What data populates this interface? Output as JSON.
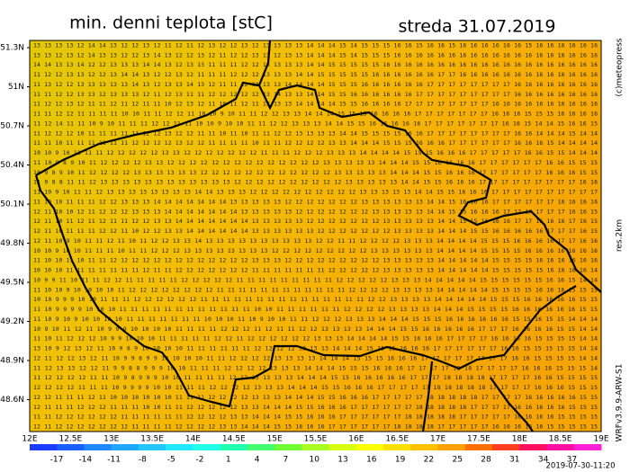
{
  "header": {
    "title": "min. denni teplota [stC]",
    "date": "streda 31.07.2019"
  },
  "map": {
    "lat_labels": [
      "51.3N",
      "51N",
      "50.7N",
      "50.4N",
      "50.1N",
      "49.8N",
      "49.5N",
      "49.2N",
      "48.9N",
      "48.6N"
    ],
    "lon_labels": [
      "12E",
      "12.5E",
      "13E",
      "13.5E",
      "14E",
      "14.5E",
      "15E",
      "15.5E",
      "16E",
      "16.5E",
      "17E",
      "17.5E",
      "18E",
      "18.5E",
      "19E"
    ],
    "grid_rows": [
      "13 13 13 13 12 14 14 13 12 12 13 12 11 12 11 12 13 12 12 13 12 13 13 13 13 14 14 14 15 14 15 15 15 16 16 15 16 16 15 16 16 16 16 16 16 15 16 16 16 16 16 16",
      "13 13 12 13 12 14 13 13 12 12 13 14 13 12 12 13 12 11 12 12 13 13 12 13 13 14 14 14 15 14 15 15 15 16 16 16 16 16 16 16 16 16 16 16 16 16 16 16 16 16 16 16",
      "14 14 13 13 14 12 12 13 13 13 14 14 13 12 13 13 11 11 11 12 12 13 13 13 13 14 14 15 15 15 15 15 16 16 16 16 16 16 16 16 16 16 16 16 16 16 16 16 16 16 16 16",
      "11 12 12 13 13 12 12 13 14 14 13 12 12 13 12 11 11 11 12 12 12 13 13 13 14 14 15 15 15 15 15 16 16 16 16 16 16 17 17 16 16 16 16 16 16 16 16 16 16 16 16 16",
      "11 13 12 12 13 13 13 13 13 14 13 12 13 13 14 13 12 11 11 12 12 13 13 14 14 14 14 15 15 15 16 16 16 16 16 16 17 17 17 17 17 17 17 17 16 16 16 16 16 16 16 16",
      "11 11 12 12 13 13 12 13 13 13 12 11 12 13 11 11 12 12 12 12 12 13 14 13 13 14 14 15 15 16 16 16 16 16 16 17 17 17 17 17 17 17 17 17 16 16 16 16 16 16 16 16",
      "11 12 12 13 12 11 11 12 11 12 11 11 10 12 13 12 11 10 11 12 11 12 13 13 14 14 14 14 15 15 16 16 16 16 17 17 17 17 17 17 17 17 16 16 16 16 16 16 16 16 16 16",
      "11 11 12 12 11 11 11 11 10 10 11 11 12 12 11 10 10 9 10 11 11 12 12 13 13 14 14 14 15 15 15 16 16 16 16 17 17 17 17 17 17 17 16 16 16 15 15 15 16 16 16 16",
      "11 12 14 11 11 10 9 10 11 11 11 12 12 11 11 10 10 9 10 10 11 11 12 12 13 13 13 14 14 15 15 16 16 16 16 16 17 17 17 17 17 17 17 16 16 15 14 14 15 16 16 15",
      "11 12 12 12 10 11 11 11 11 11 12 12 13 12 12 11 11 10 11 10 11 11 12 12 13 13 13 13 14 14 15 15 15 15 16 16 17 17 17 17 17 17 17 17 16 16 14 14 14 15 14 14",
      "11 11 10 11 11 11 11 11 11 12 12 12 12 13 12 12 11 11 11 11 10 11 11 12 12 12 12 13 13 14 14 14 15 15 15 16 16 16 17 17 17 17 17 17 16 16 16 15 14 14 14 14",
      "10 10 9 10 11 11 11 12 12 12 12 12 13 13 12 12 12 12 12 12 12 11 11 11 12 12 12 13 13 13 14 14 14 14 15 15 15 16 16 16 17 17 17 17 17 16 16 15 15 14 14 14",
      "11 10 9 8 9 10 11 12 12 12 12 13 13 12 12 12 12 12 12 12 12 12 12 12 12 12 12 13 13 13 13 13 14 14 14 15 15 16 16 16 16 17 17 17 17 17 17 16 16 15 15 15",
      "10 9 8 9 10 11 12 12 12 12 13 13 13 13 13 13 12 12 12 12 12 12 12 12 12 12 12 12 13 13 13 13 13 14 14 14 15 15 16 16 16 17 17 17 17 17 17 16 16 16 15 15",
      "11 9 8 8 11 11 12 13 13 13 13 13 13 13 13 13 13 13 13 12 12 12 12 12 12 12 12 12 12 13 13 13 13 13 14 14 15 15 16 16 16 17 17 17 17 17 17 17 17 17 16 16",
      "11 10 9 10 11 11 12 13 13 13 13 13 13 13 13 14 14 13 13 13 12 12 12 12 12 12 12 12 12 12 13 13 13 13 13 14 14 15 15 16 16 16 17 17 17 17 17 17 17 17 17 17",
      "11 10 10 11 11 11 12 12 13 13 13 14 14 14 14 14 14 14 13 13 13 13 13 12 12 12 12 12 12 12 13 13 13 13 13 13 14 14 15 16 16 16 17 17 17 17 17 17 16 16 16 16",
      "12 11 10 10 12 11 12 12 12 13 13 13 14 14 14 14 14 14 14 13 13 13 13 13 12 12 12 12 12 12 12 13 13 13 13 13 14 14 15 15 16 16 16 17 17 17 17 17 17 16 16 15",
      "12 11 10 11 12 11 12 11 11 12 12 13 13 14 14 14 14 14 14 14 13 13 13 13 13 12 12 12 12 12 12 12 13 13 13 13 13 14 14 15 15 16 16 16 17 17 16 16 16 17 16 15",
      "12 11 10 11 11 11 12 12 11 10 12 12 13 13 14 14 14 14 14 14 13 13 13 13 13 13 12 12 12 12 12 12 12 13 13 13 13 14 14 14 15 15 16 16 16 16 16 17 17 17 16 15",
      "12 11 10 9 10 11 11 12 11 10 11 12 12 13 13 14 13 13 13 13 13 13 13 13 13 13 12 12 11 11 12 12 12 12 13 13 13 14 14 14 14 15 15 15 16 16 16 16 17 17 16 16",
      "10 10 9 10 10 11 11 11 10 11 11 12 12 12 13 13 13 13 13 13 13 13 12 12 12 12 12 12 12 12 12 13 13 13 13 13 13 14 14 14 14 15 15 15 15 16 16 16 16 16 16 16",
      "11 10 10 11 10 11 11 12 12 12 12 12 12 12 12 12 12 12 12 12 13 13 13 12 12 12 12 12 12 12 12 12 13 13 13 13 13 14 14 14 14 14 15 15 15 15 16 16 16 16 16 16",
      "10 10 10 11 11 11 11 11 11 11 12 11 11 12 12 12 12 12 12 12 11 11 11 11 11 11 11 12 12 12 12 12 13 13 13 13 13 14 14 14 14 14 15 15 15 15 15 16 16 16 16 14",
      "10 9 9 11 10 11 11 12 12 11 11 11 11 11 12 12 12 12 12 11 11 11 11 11 11 11 11 11 12 12 12 12 12 13 13 13 14 14 14 14 14 15 15 15 15 15 15 16 16 15 14 14",
      "11 10 10 9 10 10 10 10 11 12 12 12 12 12 12 12 12 11 11 11 11 11 11 11 11 11 11 11 11 12 12 12 12 13 13 13 13 14 14 14 14 14 15 15 15 15 16 16 16 15 15 15",
      "10 10 9 9 9 10 10 11 11 11 12 12 12 12 12 12 11 11 11 11 11 11 11 11 11 11 11 11 11 11 11 12 12 13 13 13 13 14 14 14 14 14 15 15 15 16 16 16 16 16 15 15",
      "11 10 9 9 9 9 10 10 10 11 11 11 11 11 11 11 11 11 11 11 11 10 10 11 11 11 11 11 11 12 12 12 12 13 13 13 13 14 14 14 15 15 15 15 16 16 16 16 16 16 15 15",
      "11 10 9 10 9 10 10 10 10 11 11 11 11 11 11 11 10 10 10 11 10 9 10 10 11 11 12 12 12 13 13 13 14 14 14 15 15 15 16 16 16 16 16 16 15 15 16 15 15 14 14 14",
      "10 9 10 11 12 11 10 9 9 9 10 10 10 10 11 11 11 11 12 12 12 11 12 11 11 12 12 13 13 13 13 14 14 14 15 15 16 16 16 16 16 17 17 17 16 16 16 16 15 15 14 14",
      "11 10 11 12 12 12 10 9 9 10 10 10 11 11 11 11 11 12 12 11 12 12 12 12 12 12 13 13 13 14 14 14 14 15 15 16 16 16 17 17 17 17 16 16 16 16 15 15 15 15 14 14",
      "13 10 9 12 13 12 11 10 9 8 9 10 10 10 10 11 11 11 11 11 11 12 12 12 12 13 13 13 14 14 14 15 15 15 16 16 16 17 17 17 17 17 17 16 16 15 15 15 15 15 14 14",
      "12 11 12 12 13 12 11 10 9 9 8 9 9 10 10 10 10 11 11 12 12 12 12 13 13 13 13 14 14 14 15 15 15 16 16 16 17 17 17 17 17 17 17 17 16 16 15 15 15 15 14 14",
      "11 12 13 13 12 12 11 9 9 8 8 9 9 9 10 10 11 11 11 12 12 12 12 13 13 13 14 14 14 15 15 15 16 16 16 17 17 17 17 18 18 17 17 17 17 16 16 16 15 15 15 14",
      "11 12 12 12 12 11 11 10 9 8 9 9 9 10 10 11 11 11 11 12 12 13 13 13 13 14 14 14 15 15 16 16 16 16 16 17 17 17 18 18 18 18 17 17 17 17 16 16 15 15 15 15",
      "12 12 12 12 11 11 11 10 9 9 9 9 10 10 11 11 11 12 12 12 12 13 13 13 14 14 14 15 15 16 16 16 17 17 17 17 17 18 18 18 18 18 17 17 17 17 16 16 16 15 15 15",
      "12 12 11 11 11 12 11 10 10 10 10 10 10 11 11 11 12 12 12 12 13 13 13 14 14 14 15 15 16 16 16 17 17 17 17 17 18 18 18 18 18 17 17 17 17 16 16 16 16 16 15 15",
      "12 11 11 11 12 12 12 11 11 11 10 10 11 11 12 12 12 12 12 13 13 14 14 14 15 15 16 16 16 17 17 17 17 17 17 18 18 18 18 18 17 17 17 17 16 16 16 16 16 15 15 15",
      "11 11 12 12 12 12 12 12 11 11 11 11 11 11 12 12 12 12 13 13 14 14 14 15 15 16 16 16 17 17 17 17 17 17 18 18 18 18 18 17 17 17 17 17 16 16 16 16 15 15 15 15",
      "12 11 12 12 12 12 12 12 12 11 11 11 11 12 12 12 12 13 13 14 14 14 15 15 16 16 16 17 17 17 17 17 17 18 18 18 18 17 17 17 17 17 16 16 16 16 16 15 15 15 15 15"
    ]
  },
  "colorbar": {
    "labels": [
      "-17",
      "-14",
      "-11",
      "-8",
      "-5",
      "-2",
      "1",
      "4",
      "7",
      "10",
      "13",
      "16",
      "19",
      "22",
      "25",
      "28",
      "31",
      "34",
      "37"
    ],
    "colors": [
      "#1a3cff",
      "#1a60ff",
      "#2088ff",
      "#20a8ff",
      "#20c8ff",
      "#20e8ff",
      "#20ffe8",
      "#20ffb0",
      "#40ff70",
      "#70ff30",
      "#a8ff20",
      "#d8ff10",
      "#ffff00",
      "#ffe000",
      "#ffc000",
      "#ffa000",
      "#ff7000",
      "#ff4020",
      "#ff1060",
      "#ff10a0",
      "#ff20d8"
    ]
  },
  "credits": {
    "copyright": "(c)meteopress",
    "resolution": "res.2km",
    "model": "WRFv3.9.9-ARW-S1",
    "run": "2019-07-30-11:20"
  }
}
